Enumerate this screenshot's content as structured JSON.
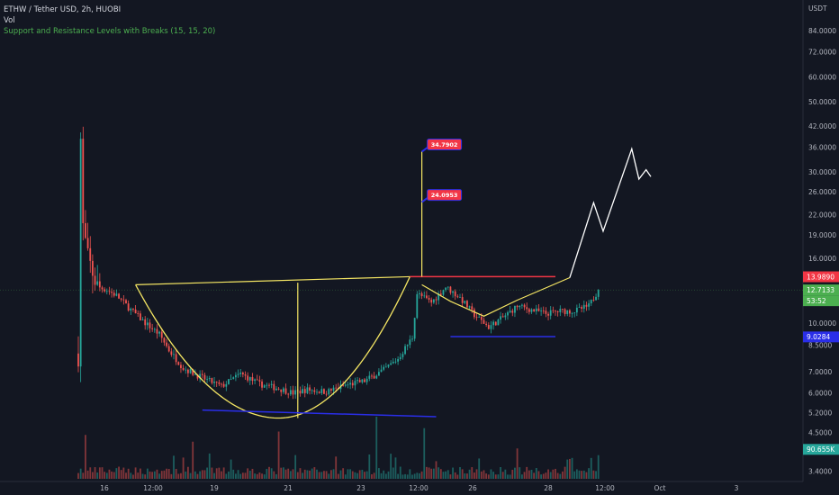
{
  "legend": {
    "symbol": "ETHW / Tether USD, 2h, HUOBI",
    "volume": "Vol",
    "indicator": "Support and Resistance Levels with Breaks (15, 15, 20)"
  },
  "chart_data": {
    "type": "candlestick",
    "currency_label": "USDT",
    "y_scale": "log",
    "ylim": [
      3.15,
      105
    ],
    "y_ticks": [
      "84.0000",
      "72.0000",
      "60.0000",
      "50.0000",
      "42.0000",
      "36.0000",
      "30.0000",
      "26.0000",
      "22.0000",
      "19.0000",
      "16.0000",
      "10.0000",
      "8.5000",
      "7.0000",
      "6.0000",
      "5.2000",
      "4.5000",
      "3.4000"
    ],
    "x_ticks": [
      "16",
      "12:00",
      "19",
      "21",
      "23",
      "12:00",
      "26",
      "28",
      "12:00",
      "Oct",
      "3"
    ],
    "price_badges": [
      {
        "label": "13.9890",
        "value": 13.989,
        "color": "#f23645"
      },
      {
        "label": "12.7133",
        "value": 12.7133,
        "color": "#4caf50"
      },
      {
        "label": "53:52",
        "value": 11.85,
        "color": "#4caf50"
      },
      {
        "label": "9.0284",
        "value": 9.0284,
        "color": "#2a2ee8"
      },
      {
        "label": "90.655K",
        "value": 3.98,
        "color": "#26a69a"
      }
    ],
    "callouts": [
      {
        "label": "34.7902",
        "value": 34.7902
      },
      {
        "label": "24.0953",
        "value": 24.0953
      }
    ],
    "anchors": [
      [
        0,
        8
      ],
      [
        1,
        38
      ],
      [
        2,
        20
      ],
      [
        4,
        16
      ],
      [
        8,
        13.0
      ],
      [
        12,
        12.7
      ],
      [
        16,
        12.2
      ],
      [
        22,
        11.0
      ],
      [
        28,
        10.0
      ],
      [
        34,
        9.2
      ],
      [
        38,
        8.2
      ],
      [
        44,
        7.2
      ],
      [
        52,
        6.7
      ],
      [
        60,
        6.3
      ],
      [
        68,
        6.9
      ],
      [
        76,
        6.4
      ],
      [
        84,
        6.2
      ],
      [
        90,
        6.0
      ],
      [
        96,
        6.15
      ],
      [
        104,
        6.05
      ],
      [
        112,
        6.35
      ],
      [
        120,
        6.55
      ],
      [
        128,
        7.1
      ],
      [
        134,
        7.7
      ],
      [
        140,
        9.0
      ],
      [
        142,
        12.4
      ],
      [
        148,
        11.6
      ],
      [
        154,
        13.0
      ],
      [
        160,
        12.0
      ],
      [
        166,
        10.6
      ],
      [
        172,
        9.7
      ],
      [
        178,
        10.4
      ],
      [
        184,
        11.3
      ],
      [
        190,
        11.0
      ],
      [
        196,
        10.7
      ],
      [
        202,
        10.9
      ],
      [
        208,
        10.9
      ],
      [
        214,
        11.3
      ],
      [
        218,
        12.71
      ]
    ],
    "candle_count": 219,
    "overlay": {
      "cup_rim": {
        "start": [
          24,
          13.2
        ],
        "end": [
          139,
          14.0
        ]
      },
      "cup_bottom_time": 84,
      "cup_bottom_value": 5.0,
      "support_line": {
        "start": [
          52,
          5.3
        ],
        "end": [
          150,
          5.05
        ]
      },
      "resistance_line": {
        "start": [
          139,
          14.0
        ],
        "end": [
          200,
          14.0
        ]
      },
      "handle_support": {
        "start": [
          156,
          9.05
        ],
        "end": [
          200,
          9.05
        ]
      },
      "spike_time": 144,
      "handle": [
        [
          144,
          13.2
        ],
        [
          156,
          11.7
        ],
        [
          170,
          10.5
        ],
        [
          184,
          11.8
        ],
        [
          206,
          13.9
        ]
      ],
      "projection": [
        [
          206,
          13.9
        ],
        [
          216,
          24.0
        ],
        [
          220,
          19.5
        ],
        [
          232,
          35.5
        ],
        [
          235,
          28.5
        ],
        [
          238,
          30.5
        ],
        [
          240,
          29.0
        ]
      ]
    },
    "volume_spikes": [
      [
        3,
        0.65
      ],
      [
        48,
        0.55
      ],
      [
        84,
        0.7
      ],
      [
        125,
        0.92
      ],
      [
        145,
        0.55
      ],
      [
        184,
        0.45
      ],
      [
        218,
        0.35
      ]
    ]
  }
}
